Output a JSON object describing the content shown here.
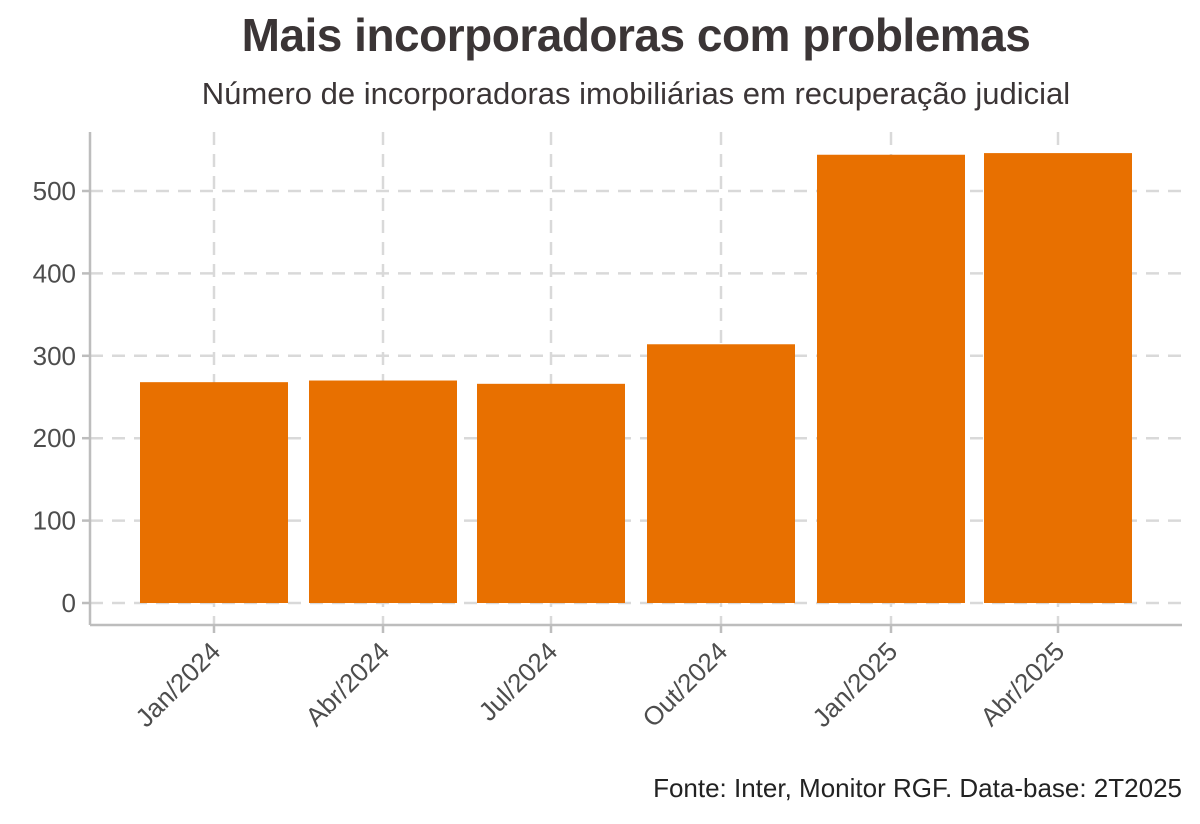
{
  "chart_data": {
    "type": "bar",
    "title": "Mais incorporadoras com problemas",
    "subtitle": "Número de incorporadoras imobiliárias em recuperação judicial",
    "caption": "Fonte: Inter, Monitor RGF. Data-base: 2T2025",
    "xlabel": "",
    "ylabel": "",
    "categories": [
      "Jan/2024",
      "Abr/2024",
      "Jul/2024",
      "Out/2024",
      "Jan/2025",
      "Abr/2025"
    ],
    "values": [
      268,
      270,
      266,
      314,
      544,
      546
    ],
    "ylim": [
      0,
      570
    ],
    "yticks": [
      0,
      100,
      200,
      300,
      400,
      500
    ],
    "grid": true,
    "bar_color": "#e87000"
  }
}
